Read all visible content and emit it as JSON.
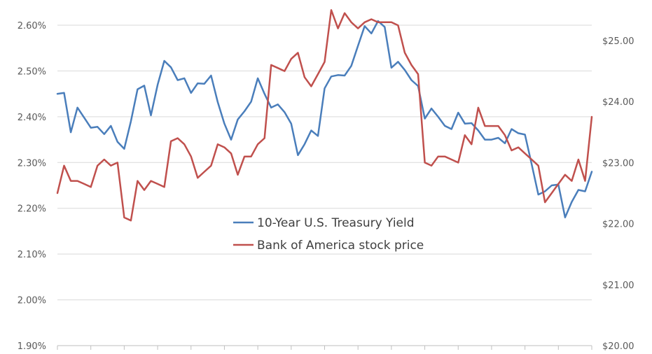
{
  "chart_data": {
    "type": "line",
    "title": "",
    "xlabel": "",
    "grid": true,
    "legend": "center",
    "x": [
      0,
      1,
      2,
      3,
      4,
      5,
      6,
      7,
      8,
      9,
      10,
      11,
      12,
      13,
      14,
      15,
      16,
      17,
      18,
      19,
      20,
      21,
      22,
      23,
      24,
      25,
      26,
      27,
      28,
      29,
      30,
      31,
      32,
      33,
      34,
      35,
      36,
      37,
      38,
      39,
      40,
      41,
      42,
      43,
      44,
      45,
      46,
      47,
      48,
      49,
      50,
      51,
      52,
      53,
      54,
      55,
      56,
      57,
      58,
      59,
      60,
      61,
      62,
      63,
      64,
      65,
      66,
      67,
      68,
      69,
      70,
      71,
      72,
      73,
      74,
      75,
      76,
      77,
      78,
      79,
      80
    ],
    "y_left": {
      "ticks": [
        "1.90%",
        "2.00%",
        "2.10%",
        "2.20%",
        "2.30%",
        "2.40%",
        "2.50%",
        "2.60%"
      ],
      "range": [
        1.9,
        2.6
      ]
    },
    "y_right": {
      "ticks": [
        "$20.00",
        "$21.00",
        "$22.00",
        "$23.00",
        "$24.00",
        "$25.00"
      ],
      "range": [
        20,
        25
      ]
    },
    "series": [
      {
        "name": "10-Year U.S. Treasury Yield",
        "axis": "left",
        "color": "#4a7ebb",
        "values": [
          2.45,
          2.452,
          2.366,
          2.42,
          2.398,
          2.376,
          2.378,
          2.362,
          2.38,
          2.345,
          2.33,
          2.39,
          2.46,
          2.468,
          2.403,
          2.47,
          2.522,
          2.508,
          2.48,
          2.484,
          2.452,
          2.473,
          2.472,
          2.49,
          2.432,
          2.385,
          2.35,
          2.394,
          2.412,
          2.433,
          2.484,
          2.45,
          2.42,
          2.427,
          2.41,
          2.385,
          2.316,
          2.34,
          2.37,
          2.358,
          2.462,
          2.488,
          2.491,
          2.49,
          2.511,
          2.555,
          2.598,
          2.582,
          2.609,
          2.596,
          2.507,
          2.52,
          2.502,
          2.48,
          2.467,
          2.396,
          2.418,
          2.4,
          2.38,
          2.373,
          2.409,
          2.385,
          2.386,
          2.37,
          2.35,
          2.35,
          2.354,
          2.342,
          2.373,
          2.364,
          2.361,
          2.296,
          2.23,
          2.237,
          2.25,
          2.252,
          2.18,
          2.214,
          2.24,
          2.237,
          2.28
        ]
      },
      {
        "name": "Bank of America stock price",
        "axis": "right",
        "color": "#c0504d",
        "values": [
          22.5,
          22.95,
          22.7,
          22.7,
          22.65,
          22.6,
          22.95,
          23.05,
          22.95,
          23.0,
          22.1,
          22.05,
          22.7,
          22.55,
          22.7,
          22.65,
          22.6,
          23.35,
          23.4,
          23.3,
          23.1,
          22.75,
          22.85,
          22.95,
          23.3,
          23.25,
          23.15,
          22.8,
          23.1,
          23.1,
          23.3,
          23.4,
          24.6,
          24.55,
          24.5,
          24.7,
          24.8,
          24.4,
          24.25,
          24.45,
          24.65,
          25.5,
          25.2,
          25.45,
          25.3,
          25.2,
          25.3,
          25.35,
          25.3,
          25.3,
          25.3,
          25.25,
          24.8,
          24.6,
          24.45,
          23.0,
          22.95,
          23.1,
          23.1,
          23.05,
          23.0,
          23.45,
          23.3,
          23.9,
          23.6,
          23.6,
          23.6,
          23.45,
          23.2,
          23.25,
          23.15,
          23.05,
          22.95,
          22.35,
          22.5,
          22.65,
          22.8,
          22.7,
          23.05,
          22.7,
          23.75
        ]
      }
    ]
  }
}
